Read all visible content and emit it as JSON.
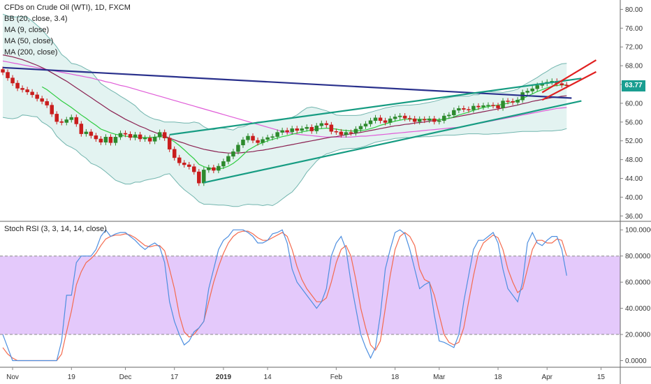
{
  "header": {
    "symbol_title": "CFDs on Crude Oil (WTI), 1D, FXCM",
    "indicators": [
      "BB (20, close, 3.4)",
      "MA (9, close)",
      "MA (50, close)",
      "MA (200, close)"
    ]
  },
  "oscillator": {
    "title": "Stoch RSI (3, 3, 14, 14, close)"
  },
  "last_price": {
    "value": "63.77",
    "color": "#1a9e91"
  },
  "colors": {
    "bb_fill": "#e3f3f1",
    "bb_line": "#72b5ae",
    "ma9": "#2ecc40",
    "ma50": "#8b2252",
    "ma200": "#e05cd8",
    "trend_blue": "#29308c",
    "channel_green": "#169c82",
    "channel_red": "#e02020",
    "candle_up": "#2d8a2d",
    "candle_down": "#c91d1d",
    "stoch_k": "#4e8fe0",
    "stoch_d": "#f46a4e",
    "stoch_band": "#e4c9fb"
  },
  "chart_data": [
    {
      "type": "candlestick",
      "title": "CFDs on Crude Oil (WTI), 1D, FXCM",
      "x_tick_labels": [
        "Nov",
        "19",
        "Dec",
        "17",
        "2019",
        "14",
        "Feb",
        "18",
        "Mar",
        "18",
        "Apr",
        "15"
      ],
      "y_tick_labels": [
        "36.00",
        "40.00",
        "44.00",
        "48.00",
        "52.00",
        "56.00",
        "60.00",
        "64.00",
        "68.00",
        "72.00",
        "76.00",
        "80.00"
      ],
      "ylim": [
        35,
        82
      ],
      "last_close": 63.77,
      "close": [
        66.6,
        65.4,
        64.3,
        63.2,
        62.9,
        62.4,
        61.8,
        61.0,
        60.4,
        59.6,
        57.7,
        56.1,
        55.9,
        56.5,
        57.0,
        55.6,
        53.5,
        53.9,
        53.1,
        52.4,
        51.7,
        52.8,
        51.6,
        52.8,
        53.6,
        53.4,
        52.7,
        53.3,
        52.4,
        52.6,
        51.9,
        52.8,
        53.8,
        52.6,
        50.2,
        48.4,
        47.3,
        46.9,
        46.5,
        45.4,
        43.0,
        45.8,
        46.3,
        45.7,
        46.6,
        47.6,
        48.7,
        49.7,
        51.1,
        52.2,
        53.0,
        52.1,
        51.6,
        52.3,
        52.7,
        52.9,
        53.8,
        54.2,
        53.9,
        54.6,
        54.2,
        54.6,
        54.9,
        54.1,
        55.2,
        55.7,
        55.4,
        54.0,
        53.9,
        53.3,
        53.8,
        53.7,
        54.5,
        55.1,
        55.6,
        56.3,
        56.9,
        56.3,
        55.9,
        56.7,
        57.1,
        57.3,
        56.8,
        56.7,
        56.1,
        56.6,
        56.4,
        56.7,
        56.1,
        56.3,
        57.3,
        57.5,
        58.5,
        58.9,
        58.7,
        58.6,
        59.4,
        59.2,
        59.5,
        59.6,
        59.5,
        59.0,
        60.5,
        60.4,
        60.2,
        60.7,
        62.3,
        62.6,
        63.1,
        63.8,
        64.2,
        64.5,
        64.7,
        64.2,
        63.9,
        63.8
      ],
      "series": [
        {
          "name": "MA (9, close)",
          "values": [
            null,
            null,
            null,
            null,
            null,
            null,
            null,
            null,
            63.5,
            62.9,
            62.1,
            61.3,
            60.5,
            59.8,
            59.1,
            58.3,
            57.5,
            56.8,
            56.0,
            55.3,
            54.5,
            54.1,
            53.7,
            53.4,
            53.2,
            53.0,
            52.9,
            52.8,
            52.7,
            52.7,
            52.7,
            52.8,
            52.9,
            52.8,
            52.4,
            51.8,
            51.0,
            50.1,
            49.1,
            48.2,
            47.0,
            46.5,
            46.2,
            46.0,
            46.0,
            46.2,
            46.6,
            47.2,
            48.0,
            49.0,
            50.0,
            50.6,
            51.2,
            51.6,
            52.0,
            52.3,
            52.6,
            52.9,
            53.1,
            53.4,
            53.6,
            53.9,
            54.1,
            54.3,
            54.5,
            54.6,
            54.7,
            54.6,
            54.5,
            54.3,
            54.2,
            54.1,
            54.1,
            54.2,
            54.3,
            54.6,
            54.9,
            55.3,
            55.6,
            55.9,
            56.2,
            56.4,
            56.6,
            56.6,
            56.6,
            56.6,
            56.6,
            56.6,
            56.5,
            56.5,
            56.6,
            56.8,
            57.1,
            57.5,
            57.8,
            58.1,
            58.5,
            58.8,
            59.1,
            59.3,
            59.5,
            59.6,
            59.8,
            60.0,
            60.3,
            60.6,
            61.0,
            61.5,
            62.0,
            62.5,
            62.9,
            63.3,
            63.6,
            63.8,
            63.9,
            63.9
          ]
        },
        {
          "name": "MA (50, close)",
          "values": [
            70.3,
            70.1,
            69.9,
            69.6,
            69.3,
            68.9,
            68.5,
            68.1,
            67.6,
            67.1,
            66.5,
            65.9,
            65.3,
            64.7,
            64.0,
            63.3,
            62.6,
            61.9,
            61.2,
            60.5,
            59.8,
            59.1,
            58.4,
            57.8,
            57.2,
            56.6,
            56.1,
            55.6,
            55.1,
            54.7,
            54.2,
            53.8,
            53.4,
            53.0,
            52.6,
            52.2,
            51.8,
            51.5,
            51.1,
            50.8,
            50.5,
            50.2,
            50.0,
            49.8,
            49.6,
            49.5,
            49.4,
            49.4,
            49.4,
            49.5,
            49.6,
            49.7,
            49.9,
            50.0,
            50.2,
            50.4,
            50.6,
            50.8,
            51.0,
            51.2,
            51.4,
            51.6,
            51.8,
            52.0,
            52.2,
            52.4,
            52.6,
            52.8,
            52.9,
            53.1,
            53.3,
            53.5,
            53.6,
            53.8,
            54.0,
            54.2,
            54.4,
            54.6,
            54.8,
            55.0,
            55.2,
            55.3,
            55.5,
            55.6,
            55.8,
            55.9,
            56.0,
            56.2,
            56.3,
            56.5,
            56.6,
            56.8,
            57.0,
            57.2,
            57.4,
            57.6,
            57.8,
            58.0,
            58.2,
            58.4,
            58.6,
            58.8,
            59.0,
            59.2,
            59.4,
            59.6,
            59.9,
            60.1,
            60.4,
            60.6,
            60.8,
            61.0,
            61.2,
            61.3,
            61.5,
            61.6
          ]
        },
        {
          "name": "MA (200, close)",
          "values": [
            69.0,
            68.8,
            68.6,
            68.4,
            68.2,
            68.0,
            67.8,
            67.6,
            67.4,
            67.2,
            67.0,
            66.8,
            66.6,
            66.4,
            66.2,
            66.0,
            65.8,
            65.6,
            65.4,
            65.1,
            64.9,
            64.6,
            64.4,
            64.1,
            63.8,
            63.6,
            63.3,
            63.0,
            62.7,
            62.4,
            62.1,
            61.8,
            61.5,
            61.2,
            60.9,
            60.6,
            60.3,
            60.0,
            59.7,
            59.4,
            59.1,
            58.8,
            58.5,
            58.2,
            57.9,
            57.6,
            57.3,
            57.0,
            56.7,
            56.4,
            56.1,
            55.8,
            55.5,
            55.2,
            54.9,
            54.6,
            54.3,
            54.0,
            53.8,
            53.6,
            53.4,
            53.3,
            53.2,
            53.1,
            53.0,
            52.9,
            52.8,
            52.8,
            52.8,
            52.8,
            52.8,
            52.8,
            52.9,
            53.0,
            53.0,
            53.1,
            53.2,
            53.3,
            53.4,
            53.5,
            53.6,
            53.7,
            53.8,
            53.9,
            54.0,
            54.1,
            54.2,
            54.3,
            54.4,
            54.5,
            54.6,
            54.7,
            54.8,
            54.9,
            55.1,
            55.3,
            55.5,
            55.7,
            55.9,
            56.1,
            56.3,
            56.5,
            56.7,
            56.9,
            57.1,
            57.3,
            57.5,
            57.7,
            57.9,
            58.1,
            58.3,
            58.5,
            58.7,
            58.9,
            59.0,
            59.1
          ]
        },
        {
          "name": "BB upper",
          "values": [
            79.0,
            78.6,
            78.4,
            78.4,
            78.5,
            78.3,
            77.5,
            76.6,
            75.7,
            74.4,
            73.3,
            72.0,
            70.4,
            69.6,
            68.5,
            68.3,
            67.9,
            67.3,
            66.8,
            65.5,
            64.2,
            63.5,
            62.8,
            62.2,
            61.5,
            60.9,
            60.2,
            59.5,
            58.4,
            57.6,
            57.0,
            56.6,
            56.4,
            56.0,
            56.0,
            56.0,
            55.9,
            55.8,
            55.8,
            56.0,
            55.8,
            55.0,
            54.5,
            54.4,
            54.7,
            54.7,
            54.5,
            54.3,
            54.9,
            55.0,
            55.4,
            55.8,
            56.0,
            56.1,
            56.1,
            56.2,
            56.3,
            56.5,
            56.8,
            57.0,
            57.5,
            58.3,
            59.0,
            59.2,
            59.0,
            58.7,
            58.4,
            58.0,
            57.5,
            57.4,
            57.4,
            57.4,
            57.4,
            57.5,
            57.8,
            58.1,
            58.4,
            58.7,
            59.0,
            59.2,
            59.4,
            59.5,
            59.6,
            59.6,
            59.7,
            59.8,
            60.0,
            60.2,
            60.4,
            60.7,
            61.0,
            61.2,
            61.4,
            61.5,
            61.5,
            61.5,
            61.8,
            61.8,
            62.4,
            62.5,
            62.4,
            62.4,
            62.3,
            62.5,
            62.7,
            63.0,
            63.7,
            64.3,
            64.9,
            65.5,
            66.2,
            66.8,
            67.5,
            68.0,
            68.4,
            68.5
          ]
        },
        {
          "name": "BB lower",
          "values": [
            57.0,
            56.8,
            56.7,
            56.9,
            57.5,
            57.4,
            57.2,
            57.1,
            56.0,
            55.4,
            54.6,
            53.0,
            52.0,
            51.1,
            50.6,
            50.0,
            49.0,
            48.3,
            47.2,
            46.8,
            46.2,
            45.4,
            44.5,
            43.6,
            43.2,
            42.8,
            42.8,
            43.2,
            43.2,
            43.6,
            43.8,
            44.0,
            44.3,
            44.8,
            45.0,
            43.8,
            42.6,
            41.6,
            40.8,
            40.0,
            39.0,
            38.5,
            38.5,
            38.4,
            38.3,
            38.3,
            38.2,
            38.0,
            38.0,
            38.3,
            38.5,
            38.4,
            38.4,
            38.2,
            38.4,
            38.2,
            38.8,
            39.6,
            40.4,
            41.1,
            42.3,
            43.7,
            45.3,
            46.5,
            47.7,
            48.6,
            49.2,
            49.5,
            49.9,
            50.2,
            50.3,
            50.4,
            50.4,
            50.6,
            50.9,
            51.3,
            51.7,
            51.9,
            52.1,
            52.3,
            52.5,
            52.6,
            52.7,
            52.7,
            52.8,
            52.8,
            52.9,
            52.9,
            53.0,
            53.1,
            53.2,
            53.2,
            53.2,
            53.3,
            53.4,
            53.5,
            53.5,
            53.5,
            53.4,
            53.4,
            53.5,
            53.5,
            53.6,
            53.7,
            53.8,
            53.9,
            54.0,
            54.0,
            54.0,
            54.0,
            54.1,
            54.1,
            54.1,
            54.2,
            54.3,
            54.6
          ]
        }
      ],
      "trend_lines": [
        {
          "name": "descending-resistance",
          "from": [
            0,
            67.6
          ],
          "to": [
            116,
            61.1
          ]
        },
        {
          "name": "channel-upper",
          "from": [
            34,
            53.3
          ],
          "to": [
            118,
            65.3
          ]
        },
        {
          "name": "channel-lower",
          "from": [
            41,
            43.1
          ],
          "to": [
            118,
            60.5
          ]
        },
        {
          "name": "red-channel-upper",
          "from": [
            110,
            62.3
          ],
          "to": [
            121,
            69.2
          ]
        },
        {
          "name": "red-channel-lower",
          "from": [
            110,
            60.7
          ],
          "to": [
            121,
            66.7
          ]
        }
      ]
    },
    {
      "type": "line",
      "title": "Stoch RSI (3, 3, 14, 14, close)",
      "y_tick_labels": [
        "0.0000",
        "20.0000",
        "40.0000",
        "60.0000",
        "80.0000",
        "100.0000"
      ],
      "ylim": [
        -4,
        106
      ],
      "bands": [
        20,
        80
      ],
      "series": [
        {
          "name": "K",
          "values": [
            20,
            10,
            0,
            0,
            0,
            0,
            0,
            0,
            0,
            0,
            0,
            0,
            15,
            50,
            50,
            75,
            80,
            80,
            80,
            85,
            95,
            100,
            95,
            97,
            98,
            98,
            95,
            92,
            88,
            85,
            88,
            90,
            87,
            75,
            45,
            30,
            20,
            12,
            15,
            22,
            25,
            30,
            55,
            70,
            85,
            92,
            95,
            100,
            100,
            100,
            98,
            95,
            90,
            90,
            92,
            97,
            98,
            100,
            90,
            70,
            60,
            55,
            50,
            45,
            40,
            45,
            55,
            80,
            90,
            95,
            85,
            60,
            40,
            20,
            10,
            2,
            10,
            35,
            70,
            85,
            98,
            100,
            97,
            85,
            70,
            55,
            58,
            60,
            35,
            15,
            14,
            12,
            10,
            20,
            45,
            65,
            85,
            92,
            92,
            95,
            98,
            90,
            70,
            55,
            50,
            45,
            60,
            90,
            98,
            90,
            88,
            92,
            95,
            95,
            85,
            65
          ]
        },
        {
          "name": "D",
          "values": [
            10,
            5,
            2,
            0,
            0,
            0,
            0,
            0,
            0,
            0,
            0,
            0,
            5,
            22,
            38,
            58,
            68,
            75,
            78,
            82,
            88,
            93,
            95,
            96,
            96,
            97,
            96,
            94,
            91,
            88,
            87,
            88,
            88,
            84,
            70,
            55,
            35,
            22,
            18,
            20,
            25,
            30,
            45,
            60,
            72,
            82,
            90,
            95,
            98,
            99,
            99,
            97,
            94,
            92,
            92,
            94,
            96,
            98,
            95,
            85,
            72,
            62,
            55,
            50,
            45,
            45,
            48,
            60,
            75,
            85,
            88,
            80,
            62,
            40,
            25,
            12,
            8,
            15,
            40,
            65,
            85,
            95,
            98,
            95,
            88,
            70,
            62,
            60,
            50,
            35,
            20,
            14,
            12,
            14,
            25,
            45,
            65,
            82,
            90,
            93,
            96,
            94,
            85,
            70,
            60,
            52,
            55,
            70,
            85,
            92,
            92,
            90,
            90,
            93,
            92,
            80
          ]
        }
      ]
    }
  ]
}
